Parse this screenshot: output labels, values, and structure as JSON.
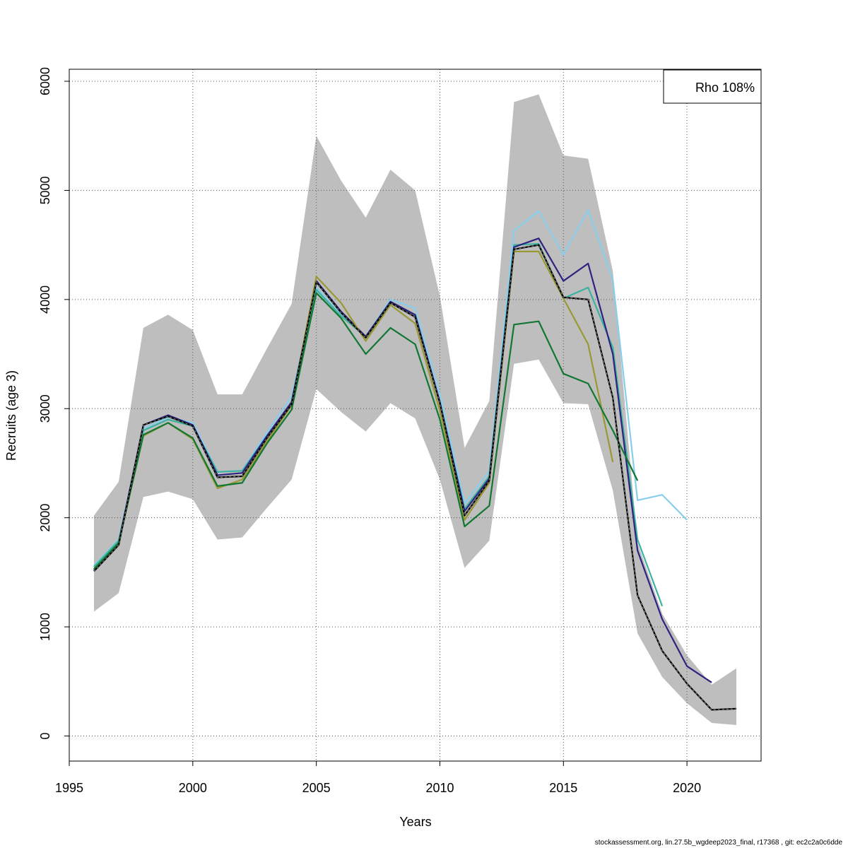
{
  "chart_data": {
    "type": "line",
    "title": "",
    "xlabel": "Years",
    "ylabel": "Recruits (age 3)",
    "xlim": [
      1995,
      2023
    ],
    "ylim": [
      -230,
      6110
    ],
    "x_ticks": [
      1995,
      2000,
      2005,
      2010,
      2015,
      2020
    ],
    "y_ticks": [
      0,
      1000,
      2000,
      3000,
      4000,
      5000,
      6000
    ],
    "grid": true,
    "legend": {
      "position": "top-right",
      "text": "Rho 108%"
    },
    "confidence_band": {
      "color": "#bebebe",
      "x": [
        1996,
        1997,
        1998,
        1999,
        2000,
        2001,
        2002,
        2003,
        2004,
        2005,
        2006,
        2007,
        2008,
        2009,
        2010,
        2011,
        2012,
        2013,
        2014,
        2015,
        2016,
        2017,
        2018,
        2019,
        2020,
        2021,
        2022
      ],
      "upper": [
        2020,
        2330,
        3740,
        3860,
        3720,
        3130,
        3130,
        3550,
        3960,
        5500,
        5090,
        4750,
        5190,
        5000,
        4030,
        2640,
        3070,
        5810,
        5880,
        5320,
        5290,
        4260,
        1770,
        1120,
        740,
        470,
        620
      ],
      "lower": [
        1140,
        1310,
        2190,
        2240,
        2170,
        1800,
        1820,
        2090,
        2350,
        3180,
        2970,
        2790,
        3050,
        2910,
        2350,
        1540,
        1790,
        3410,
        3450,
        3050,
        3040,
        2250,
        940,
        540,
        300,
        120,
        100
      ]
    },
    "series": [
      {
        "color": "#87ceeb",
        "dashed": false,
        "x": [
          1996,
          1997,
          1998,
          1999,
          2000,
          2001,
          2002,
          2003,
          2004,
          2005,
          2006,
          2007,
          2008,
          2009,
          2010,
          2011,
          2012,
          2013,
          2014,
          2015,
          2016,
          2017,
          2018,
          2019,
          2020
        ],
        "values": [
          1560,
          1800,
          2820,
          2920,
          2870,
          2420,
          2430,
          2780,
          3110,
          4110,
          3860,
          3660,
          4000,
          3920,
          3130,
          2130,
          2430,
          4630,
          4810,
          4410,
          4820,
          4180,
          2160,
          2210,
          1980
        ]
      },
      {
        "color": "#3cb3a0",
        "dashed": false,
        "x": [
          1996,
          1997,
          1998,
          1999,
          2000,
          2001,
          2002,
          2003,
          2004,
          2005,
          2006,
          2007,
          2008,
          2009,
          2010,
          2011,
          2012,
          2013,
          2014,
          2015,
          2016,
          2017,
          2018,
          2019
        ],
        "values": [
          1550,
          1790,
          2800,
          2900,
          2840,
          2420,
          2430,
          2750,
          3060,
          4090,
          3850,
          3660,
          3980,
          3860,
          3050,
          2080,
          2380,
          4500,
          4510,
          4010,
          4110,
          3560,
          1800,
          1190
        ]
      },
      {
        "color": "#2e2480",
        "dashed": false,
        "x": [
          1996,
          1997,
          1998,
          1999,
          2000,
          2001,
          2002,
          2003,
          2004,
          2005,
          2006,
          2007,
          2008,
          2009,
          2010,
          2011,
          2012,
          2013,
          2014,
          2015,
          2016,
          2017,
          2018,
          2019,
          2020,
          2021
        ],
        "values": [
          1520,
          1770,
          2850,
          2940,
          2850,
          2390,
          2410,
          2750,
          3060,
          4170,
          3890,
          3660,
          3980,
          3860,
          3060,
          2060,
          2360,
          4480,
          4560,
          4170,
          4330,
          3500,
          1700,
          1070,
          640,
          490
        ]
      },
      {
        "color": "#999933",
        "dashed": false,
        "x": [
          1996,
          1997,
          1998,
          1999,
          2000,
          2001,
          2002,
          2003,
          2004,
          2005,
          2006,
          2007,
          2008,
          2009,
          2010,
          2011,
          2012,
          2013,
          2014,
          2015,
          2016,
          2017
        ],
        "values": [
          1530,
          1770,
          2750,
          2870,
          2720,
          2270,
          2350,
          2700,
          3030,
          4210,
          3970,
          3620,
          3950,
          3780,
          2980,
          1980,
          2320,
          4440,
          4440,
          4010,
          3590,
          2510
        ]
      },
      {
        "color": "#117733",
        "dashed": false,
        "x": [
          1996,
          1997,
          1998,
          1999,
          2000,
          2001,
          2002,
          2003,
          2004,
          2005,
          2006,
          2007,
          2008,
          2009,
          2010,
          2011,
          2012,
          2013,
          2014,
          2015,
          2016,
          2017,
          2018
        ],
        "values": [
          1530,
          1770,
          2760,
          2870,
          2730,
          2290,
          2320,
          2680,
          2990,
          4060,
          3830,
          3500,
          3740,
          3590,
          2900,
          1920,
          2110,
          3770,
          3800,
          3320,
          3230,
          2800,
          2340
        ]
      },
      {
        "color": "#000000",
        "dashed": true,
        "x": [
          1996,
          1997,
          1998,
          1999,
          2000,
          2001,
          2002,
          2003,
          2004,
          2005,
          2006,
          2007,
          2008,
          2009,
          2010,
          2011,
          2012,
          2013,
          2014,
          2015,
          2016,
          2017,
          2018,
          2019,
          2020,
          2021,
          2022
        ],
        "values": [
          1510,
          1750,
          2850,
          2930,
          2840,
          2370,
          2380,
          2730,
          3040,
          4160,
          3880,
          3650,
          3970,
          3840,
          3050,
          2020,
          2340,
          4460,
          4500,
          4020,
          4000,
          3100,
          1290,
          780,
          480,
          240,
          250
        ]
      }
    ]
  },
  "footer": "stockassessment.org, lin.27.5b_wgdeep2023_final, r17368 , git: ec2c2a0c6dde"
}
